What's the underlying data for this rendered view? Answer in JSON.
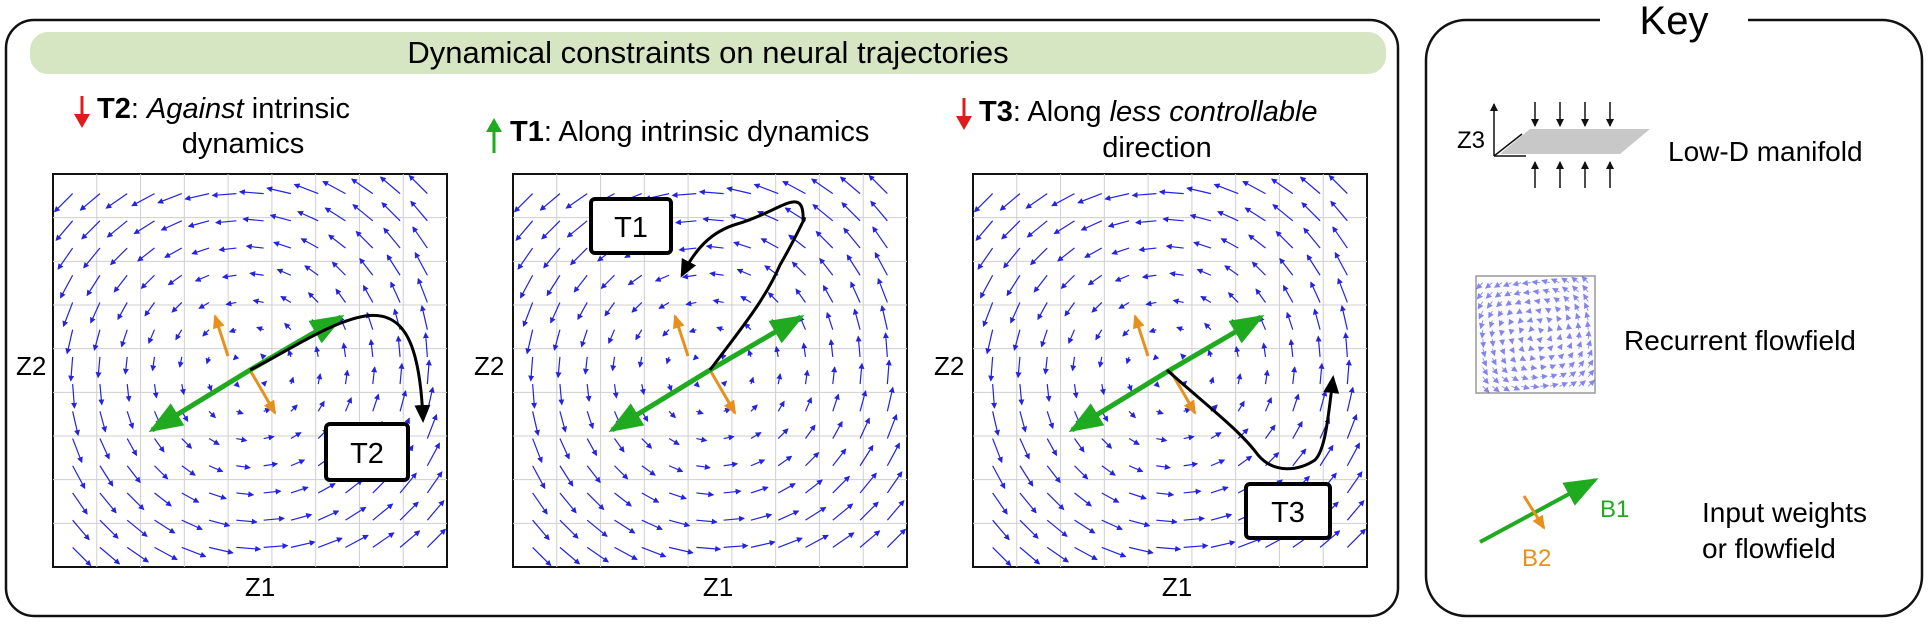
{
  "main": {
    "title": "Dynamical constraints on neural trajectories",
    "panels": [
      {
        "id": "t2",
        "trend": "down",
        "header_bold": "T2",
        "header_parts": [
          ": ",
          "Against",
          " intrinsic"
        ],
        "header_line2": "dynamics",
        "traj_label": "T2",
        "xlabel": "Z1",
        "ylabel": "Z2"
      },
      {
        "id": "t1",
        "trend": "up",
        "header_bold": "T1",
        "header_parts": [
          ": Along intrinsic dynamics"
        ],
        "header_line2": "",
        "traj_label": "T1",
        "xlabel": "Z1",
        "ylabel": "Z2"
      },
      {
        "id": "t3",
        "trend": "down",
        "header_bold": "T3",
        "header_parts": [
          ": Along ",
          "less controllable",
          ""
        ],
        "header_line2": "direction",
        "traj_label": "T3",
        "xlabel": "Z1",
        "ylabel": "Z2"
      }
    ]
  },
  "key": {
    "title": "Key",
    "items": [
      {
        "label": "Low-D manifold",
        "axis_label": "Z3"
      },
      {
        "label": "Recurrent flowfield"
      },
      {
        "label_line1": "Input weights",
        "label_line2": "or flowfield",
        "b1": "B1",
        "b2": "B2"
      }
    ]
  },
  "colors": {
    "title_band": "#d6e6c3",
    "flow": "#2323e0",
    "b1": "#1faa1f",
    "b2": "#e8901e",
    "trajectory": "#000000",
    "arrow_up": "#1faa1f",
    "arrow_down": "#e01b1b",
    "grid": "#cfcfcf"
  }
}
